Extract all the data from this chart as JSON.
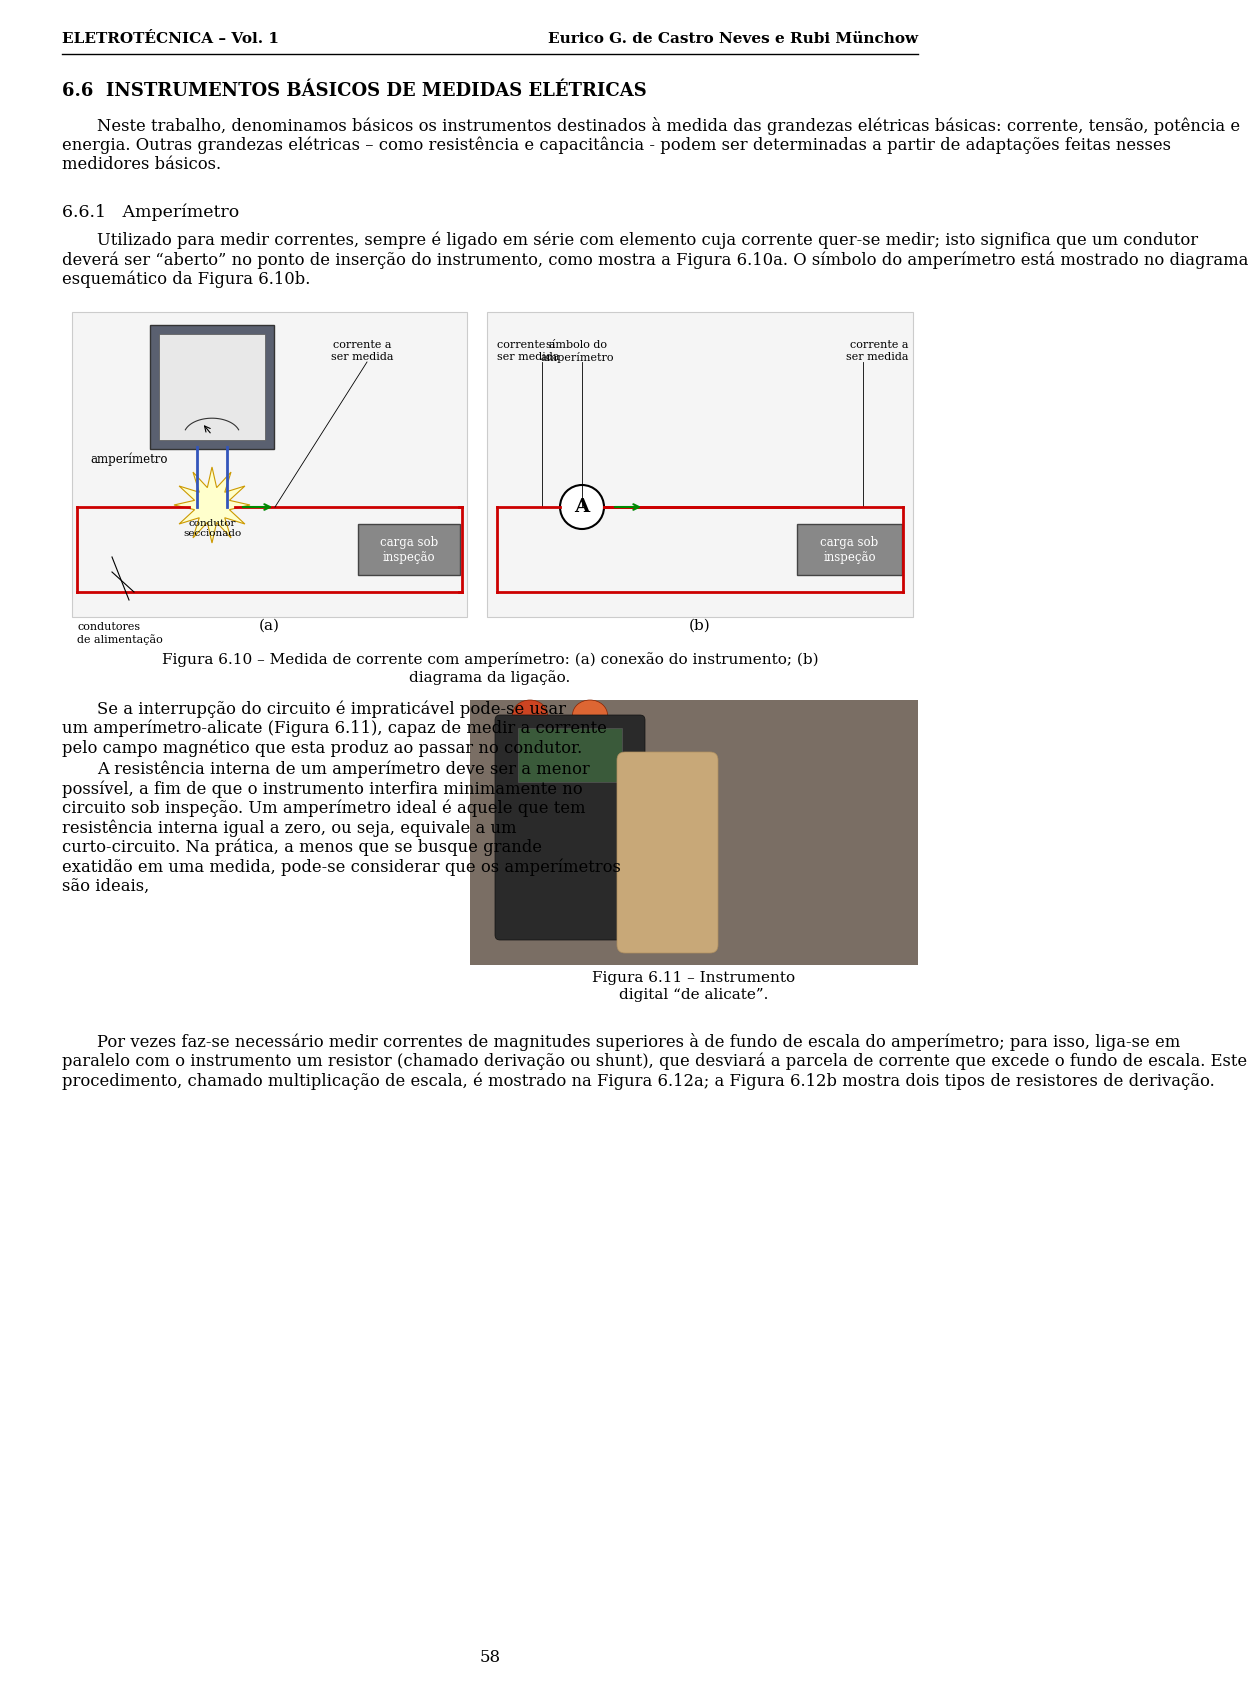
{
  "header_left": "ELETROTÉCNICA – Vol. 1",
  "header_right": "Eurico G. de Castro Neves e Rubi Münchow",
  "page_number": "58",
  "section_title": "6.6  INSTRUMENTOS BÁSICOS DE MEDIDAS ELÉTRICAS",
  "para1_indent": "    Neste trabalho, denominamos básicos os instrumentos destinados à medida das grandezas elétricas básicas: corrente, tensão, potência e energia. Outras grandezas elétricas – como resistência e capacitância - podem ser determinadas a partir de adaptações feitas nesses medidores básicos.",
  "subsection_title": "6.6.1   Amperímetro",
  "para2_indent": "    Utilizado para medir correntes, sempre é ligado em série com elemento cuja corrente quer-se medir; isto significa que um condutor deverá ser “aberto” no ponto de inserção do instrumento, como mostra a Figura 6.10a. O símbolo do amperímetro está mostrado no diagrama esquemático da Figura 6.10b.",
  "fig610_caption_line1": "Figura 6.10 – Medida de corrente com amperímetro: (a) conexão do instrumento; (b)",
  "fig610_caption_line2": "diagrama da ligação.",
  "para3_p1": "    Se a interrupção do circuito é impraticável pode-se usar um amperímetro-alicate (Figura 6.11), capaz de medir a corrente pelo campo magnético que esta produz ao passar no condutor.",
  "para3_p2": "    A resistência interna de um amperímetro deve ser a menor possível, a fim de que o instrumento interfira minimamente no circuito sob inspeção. Um amperímetro ideal é aquele que tem resistência interna igual a zero, ou seja, equivale a um curto-circuito. Na prática, a menos que se busque grande exatidão em uma medida, pode-se considerar que os amperímetros são ideais,",
  "fig611_caption_line1": "Figura 6.11 – Instrumento",
  "fig611_caption_line2": "digital “de alicate”.",
  "para4_indent": "    Por vezes faz-se necessário medir correntes de magnitudes superiores à de fundo de escala do amperímetro; para isso, liga-se em paralelo com o instrumento um resistor (chamado derivação ou shunt), que desviará a parcela de corrente que excede o fundo de escala. Este procedimento, chamado multiplicação de escala, é mostrado na Figura 6.12a; a Figura 6.12b mostra dois tipos de resistores de derivação.",
  "background_color": "#ffffff",
  "text_color": "#000000"
}
